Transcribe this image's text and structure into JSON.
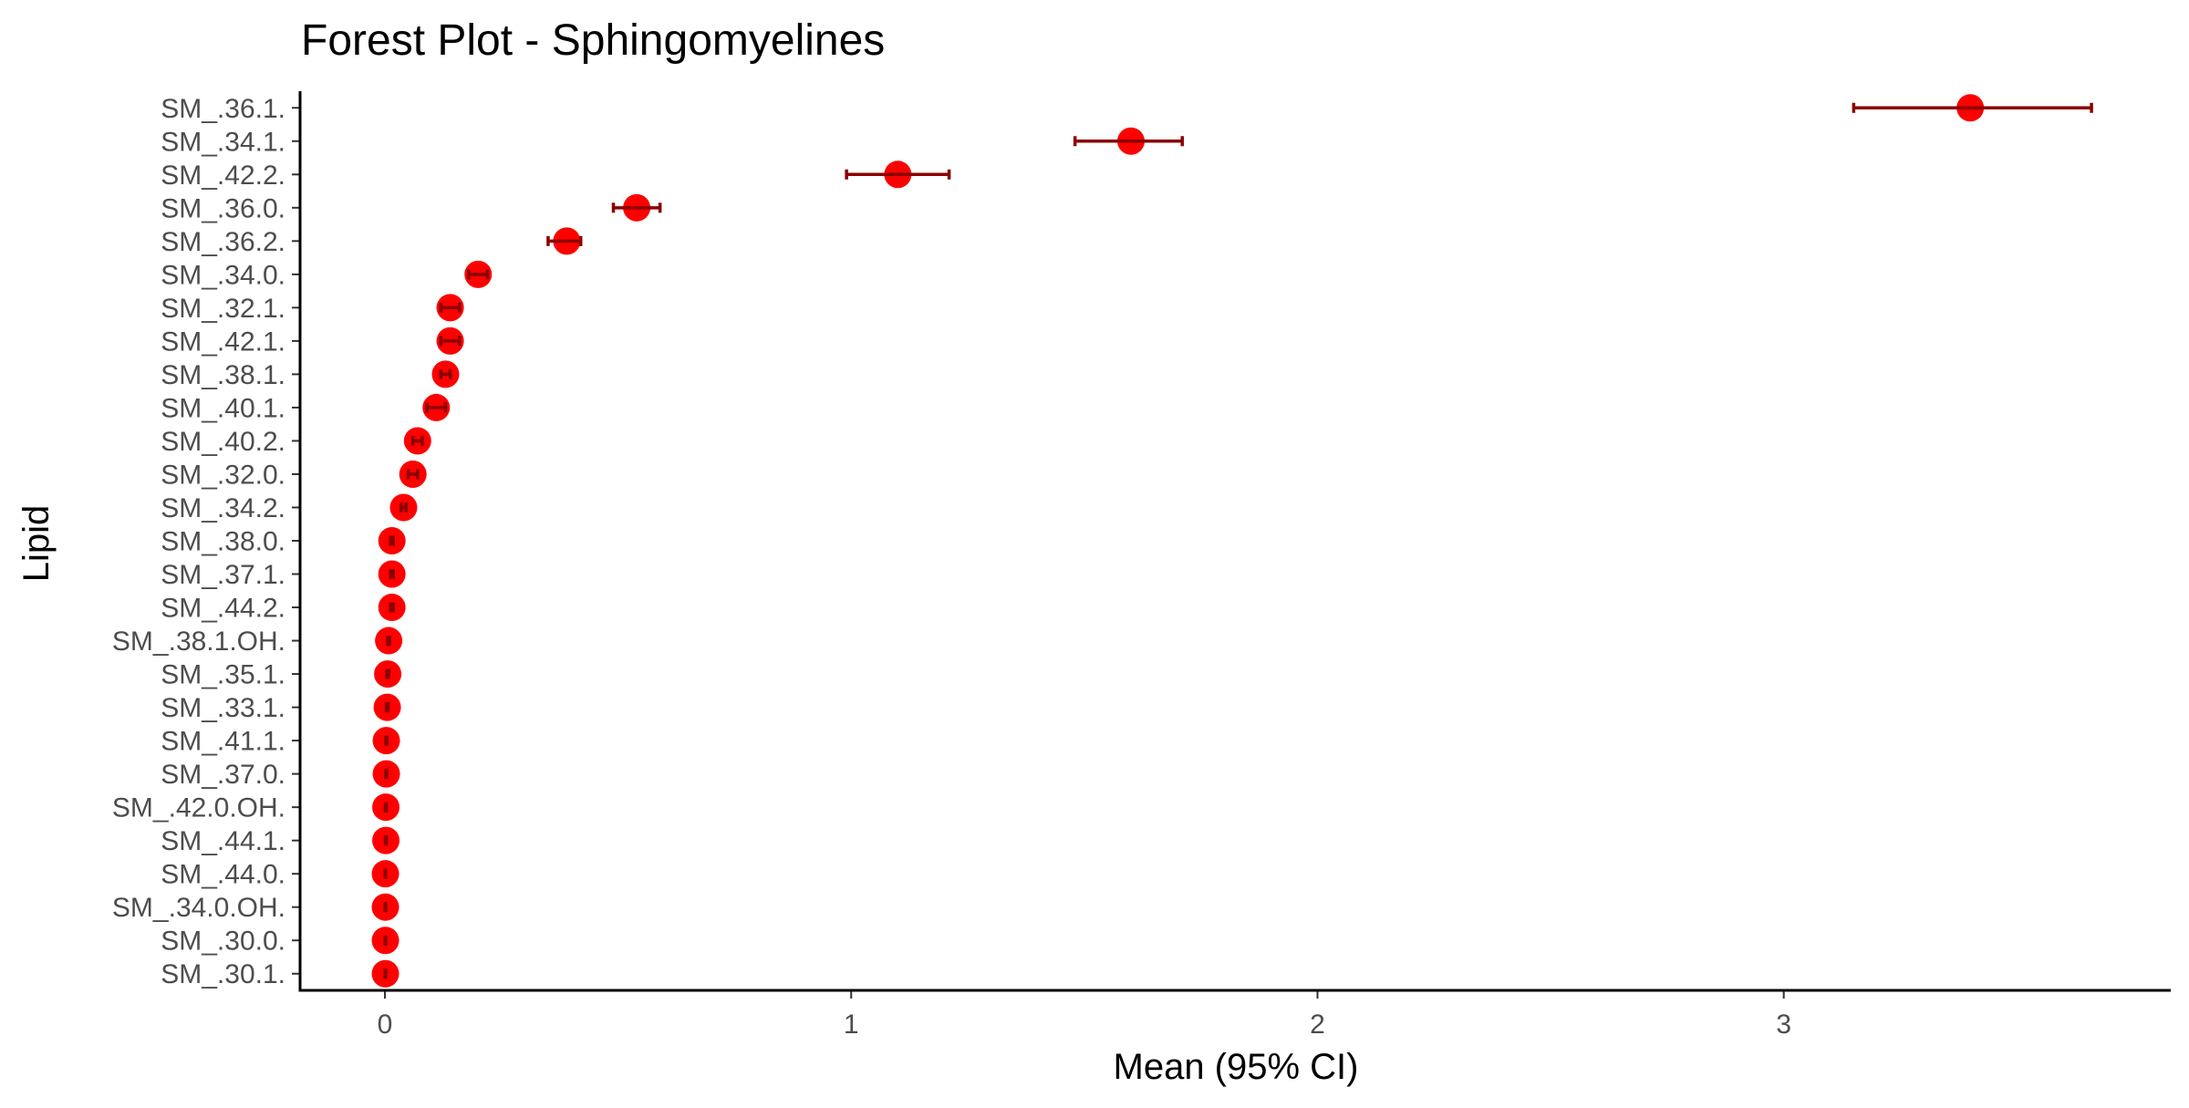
{
  "chart_data": {
    "type": "forest",
    "title": "Forest Plot - Sphingomyelines",
    "xlabel": "Mean (95% CI)",
    "ylabel": "Lipid",
    "xlim": [
      -0.18,
      3.83
    ],
    "xticks": [
      0,
      1,
      2,
      3
    ],
    "xtick_labels": [
      "0",
      "1",
      "2",
      "3"
    ],
    "grid": false,
    "point_color": "#ff0000",
    "errorbar_color": "#8b0000",
    "rows": [
      {
        "label": "SM_.36.1.",
        "mean": 3.4,
        "lower": 3.15,
        "upper": 3.66
      },
      {
        "label": "SM_.34.1.",
        "mean": 1.6,
        "lower": 1.48,
        "upper": 1.71
      },
      {
        "label": "SM_.42.2.",
        "mean": 1.1,
        "lower": 0.99,
        "upper": 1.21
      },
      {
        "label": "SM_.36.0.",
        "mean": 0.54,
        "lower": 0.49,
        "upper": 0.59
      },
      {
        "label": "SM_.36.2.",
        "mean": 0.39,
        "lower": 0.35,
        "upper": 0.42
      },
      {
        "label": "SM_.34.0.",
        "mean": 0.2,
        "lower": 0.18,
        "upper": 0.22
      },
      {
        "label": "SM_.32.1.",
        "mean": 0.14,
        "lower": 0.12,
        "upper": 0.16
      },
      {
        "label": "SM_.42.1.",
        "mean": 0.14,
        "lower": 0.12,
        "upper": 0.16
      },
      {
        "label": "SM_.38.1.",
        "mean": 0.13,
        "lower": 0.12,
        "upper": 0.14
      },
      {
        "label": "SM_.40.1.",
        "mean": 0.11,
        "lower": 0.09,
        "upper": 0.13
      },
      {
        "label": "SM_.40.2.",
        "mean": 0.07,
        "lower": 0.06,
        "upper": 0.08
      },
      {
        "label": "SM_.32.0.",
        "mean": 0.06,
        "lower": 0.05,
        "upper": 0.07
      },
      {
        "label": "SM_.34.2.",
        "mean": 0.04,
        "lower": 0.035,
        "upper": 0.045
      },
      {
        "label": "SM_.38.0.",
        "mean": 0.015,
        "lower": 0.012,
        "upper": 0.018
      },
      {
        "label": "SM_.37.1.",
        "mean": 0.015,
        "lower": 0.012,
        "upper": 0.018
      },
      {
        "label": "SM_.44.2.",
        "mean": 0.015,
        "lower": 0.012,
        "upper": 0.018
      },
      {
        "label": "SM_.38.1.OH.",
        "mean": 0.008,
        "lower": 0.006,
        "upper": 0.01
      },
      {
        "label": "SM_.35.1.",
        "mean": 0.006,
        "lower": 0.004,
        "upper": 0.008
      },
      {
        "label": "SM_.33.1.",
        "mean": 0.005,
        "lower": 0.003,
        "upper": 0.007
      },
      {
        "label": "SM_.41.1.",
        "mean": 0.003,
        "lower": 0.002,
        "upper": 0.004
      },
      {
        "label": "SM_.37.0.",
        "mean": 0.003,
        "lower": 0.002,
        "upper": 0.004
      },
      {
        "label": "SM_.42.0.OH.",
        "mean": 0.002,
        "lower": 0.001,
        "upper": 0.003
      },
      {
        "label": "SM_.44.1.",
        "mean": 0.002,
        "lower": 0.001,
        "upper": 0.003
      },
      {
        "label": "SM_.44.0.",
        "mean": 0.001,
        "lower": 0.0005,
        "upper": 0.0015
      },
      {
        "label": "SM_.34.0.OH.",
        "mean": 0.001,
        "lower": 0.0005,
        "upper": 0.0015
      },
      {
        "label": "SM_.30.0.",
        "mean": 0.001,
        "lower": 0.0005,
        "upper": 0.0015
      },
      {
        "label": "SM_.30.1.",
        "mean": 0.001,
        "lower": 0.0005,
        "upper": 0.0015
      }
    ]
  }
}
